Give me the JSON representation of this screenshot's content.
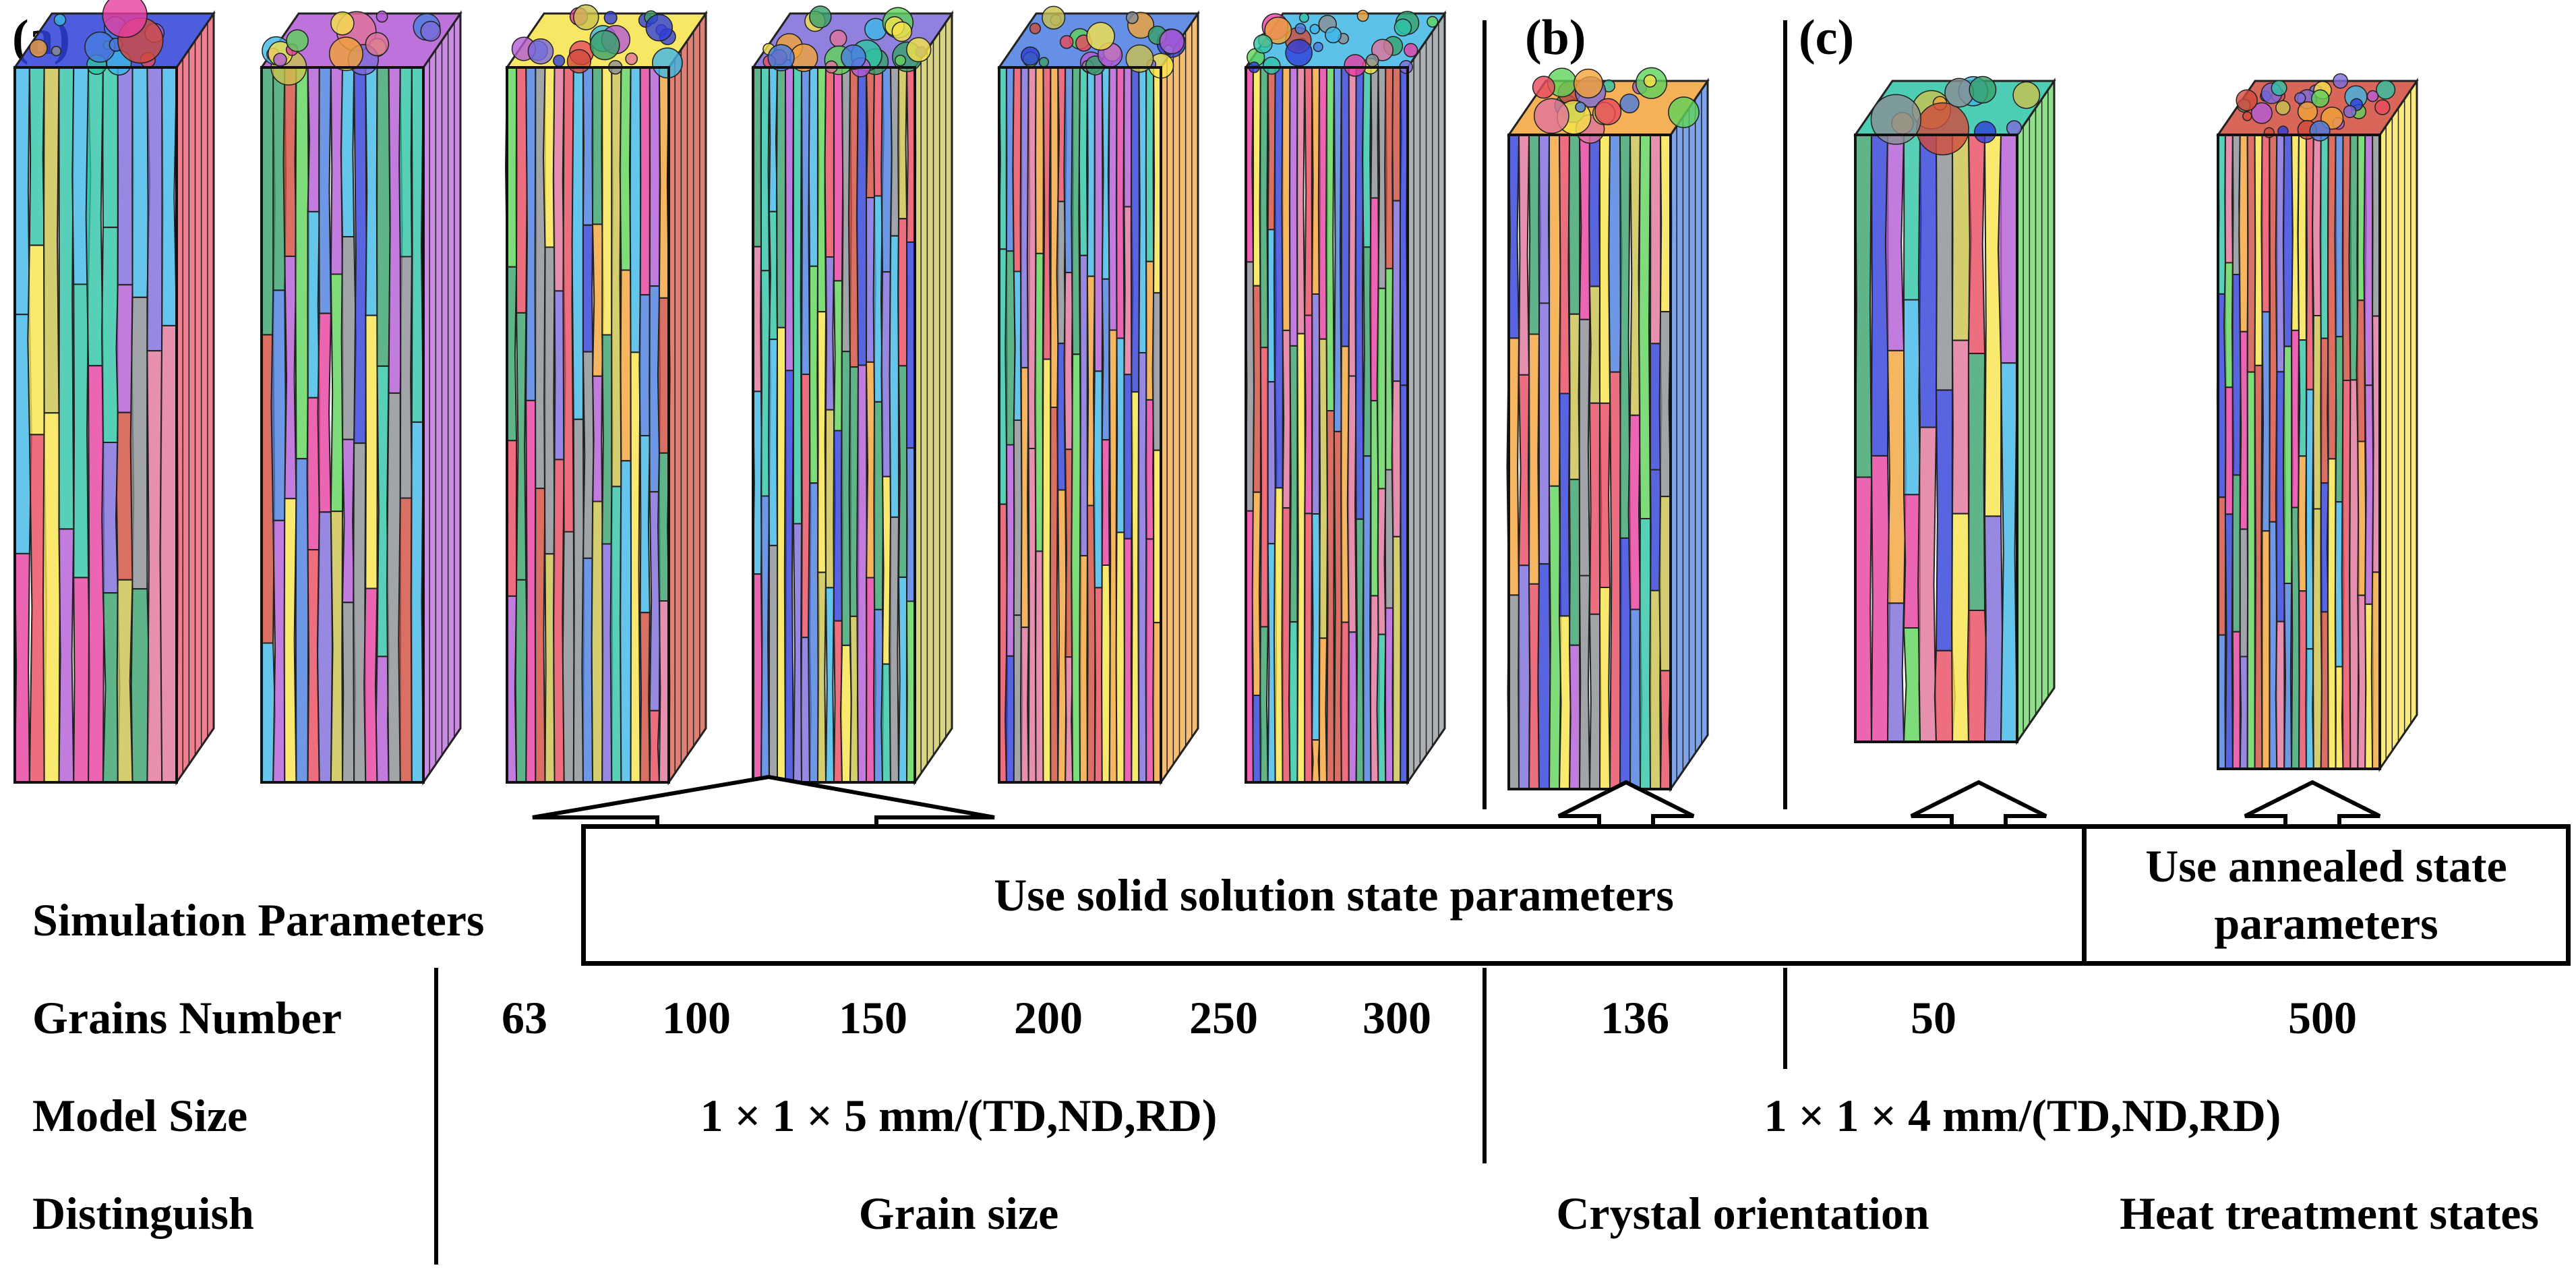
{
  "panels": {
    "a": "(a)",
    "b": "(b)",
    "c": "(c)"
  },
  "parameters_label": "Simulation Parameters",
  "boxes": {
    "solid_solution": "Use solid solution state parameters",
    "annealed": "Use annealed state parameters"
  },
  "rows": {
    "grains_number": {
      "label": "Grains Number",
      "values": [
        "63",
        "100",
        "150",
        "200",
        "250",
        "300",
        "136",
        "50",
        "500"
      ]
    },
    "model_size": {
      "label": "Model Size",
      "a": "1 × 1 × 5 mm/(TD,ND,RD)",
      "bc": "1 × 1 × 4 mm/(TD,ND,RD)"
    },
    "distinguish": {
      "label": "Distinguish",
      "a": "Grain size",
      "b": "Crystal orientation",
      "c": "Heat treatment states"
    }
  },
  "models_grain_counts": [
    63,
    100,
    150,
    200,
    250,
    300,
    136,
    50,
    500
  ],
  "colors": {
    "palette": [
      "#e84a5f",
      "#3fb7e6",
      "#2f3fd8",
      "#5fd35a",
      "#f2a33a",
      "#b35bd6",
      "#e63fa0",
      "#2ec4a6",
      "#f7e34a",
      "#8a8f94",
      "#d14b3c",
      "#7d6bd9",
      "#38a16b",
      "#e0739b",
      "#4a7de0",
      "#c9c24d"
    ]
  }
}
